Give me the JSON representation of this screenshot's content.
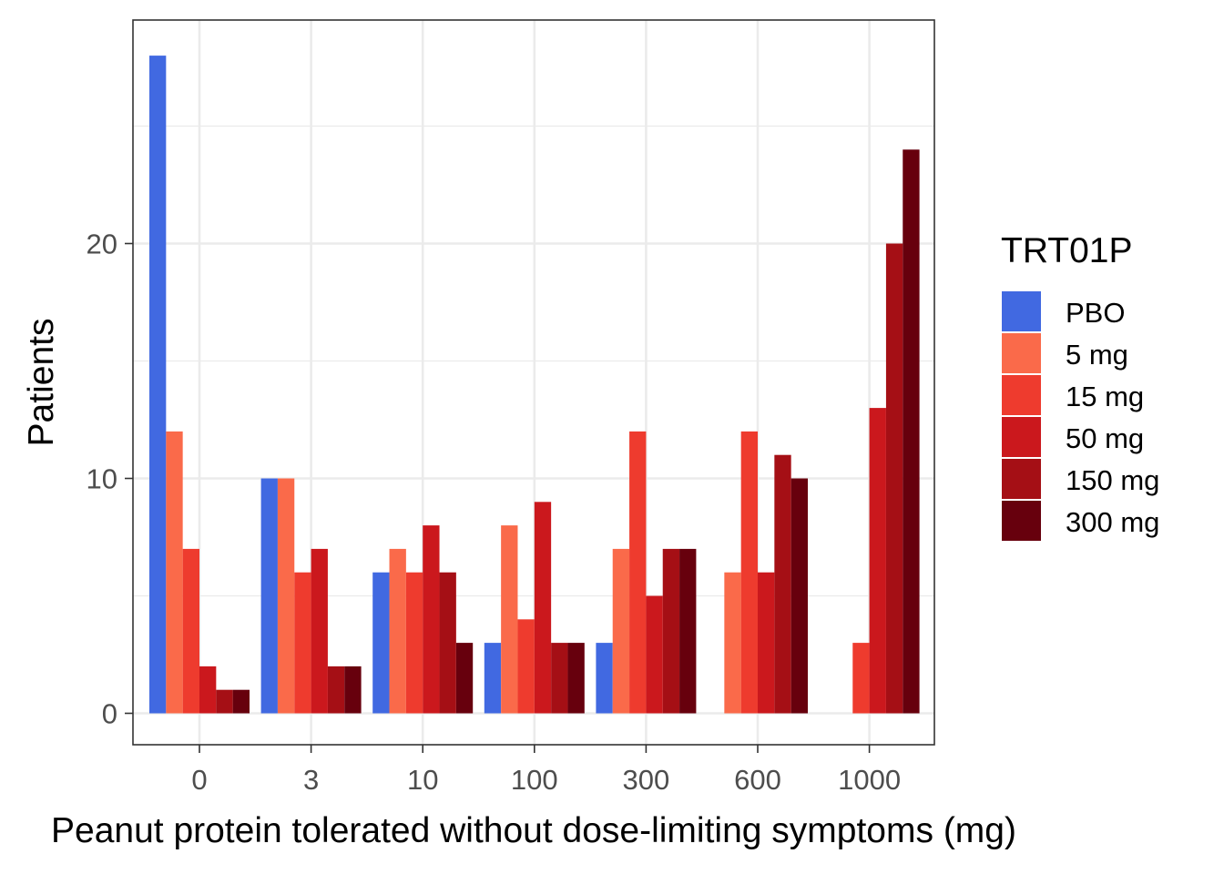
{
  "chart_data": {
    "type": "bar",
    "xlabel": "Peanut protein tolerated without dose-limiting symptoms (mg)",
    "ylabel": "Patients",
    "categories": [
      "0",
      "3",
      "10",
      "100",
      "300",
      "600",
      "1000"
    ],
    "ylim": [
      0,
      28
    ],
    "yticks": [
      0,
      10,
      20
    ],
    "grid": true,
    "legend": {
      "title": "TRT01P",
      "placement": "right"
    },
    "series": [
      {
        "name": "PBO",
        "color": "#4169E1",
        "values": [
          28,
          10,
          6,
          3,
          3,
          0,
          0
        ]
      },
      {
        "name": "5 mg",
        "color": "#FA6A4A",
        "values": [
          12,
          10,
          7,
          8,
          7,
          6,
          0
        ]
      },
      {
        "name": "15 mg",
        "color": "#EE3B2E",
        "values": [
          7,
          6,
          6,
          4,
          12,
          12,
          3
        ]
      },
      {
        "name": "50 mg",
        "color": "#CB181D",
        "values": [
          2,
          7,
          8,
          9,
          5,
          6,
          13
        ]
      },
      {
        "name": "150 mg",
        "color": "#A50F15",
        "values": [
          1,
          2,
          6,
          3,
          7,
          11,
          20
        ]
      },
      {
        "name": "300 mg",
        "color": "#67000D",
        "values": [
          1,
          2,
          3,
          3,
          7,
          10,
          24
        ]
      }
    ]
  }
}
